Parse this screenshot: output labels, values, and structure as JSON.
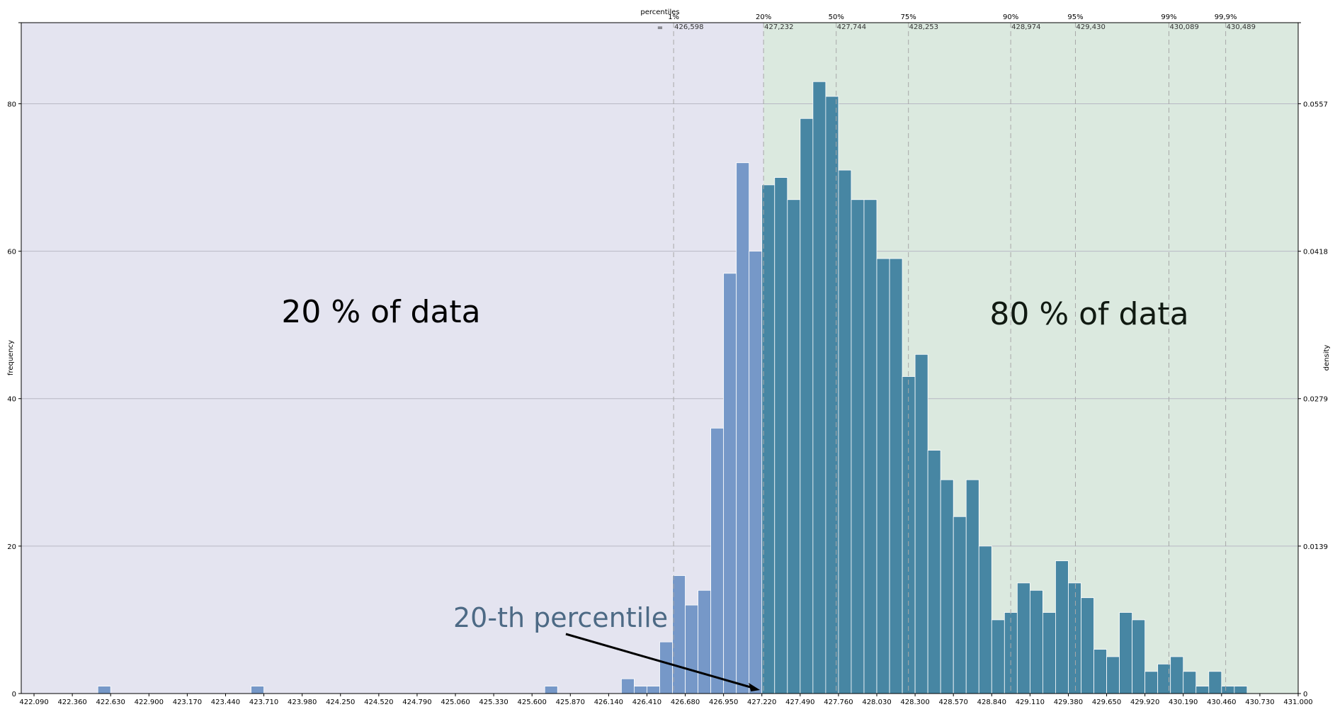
{
  "colors": {
    "left_region": "#e4e4f0",
    "right_region": "#dbe9df",
    "left_bars": "#7698c8",
    "right_bars": "#4786a3",
    "grid": "#b8b8c4",
    "percentile_line": "#a8a8a8",
    "annotation_text": "#4d6a85"
  },
  "chart_data": {
    "type": "bar",
    "x_range": [
      422.0,
      431.0
    ],
    "bin_width": 0.09,
    "bins_start": [
      422.54,
      423.62,
      425.69,
      426.23,
      426.32,
      426.41,
      426.5,
      426.59,
      426.68,
      426.77,
      426.86,
      426.95,
      427.04,
      427.13,
      427.22,
      427.31,
      427.4,
      427.49,
      427.58,
      427.67,
      427.76,
      427.85,
      427.94,
      428.03,
      428.12,
      428.21,
      428.3,
      428.39,
      428.48,
      428.57,
      428.66,
      428.75,
      428.84,
      428.93,
      429.02,
      429.11,
      429.2,
      429.29,
      429.38,
      429.47,
      429.56,
      429.65,
      429.74,
      429.83,
      429.92,
      430.01,
      430.1,
      430.19,
      430.28,
      430.37,
      430.46,
      430.55
    ],
    "values": [
      1,
      1,
      1,
      2,
      1,
      1,
      7,
      16,
      12,
      14,
      36,
      57,
      72,
      60,
      69,
      70,
      67,
      78,
      83,
      81,
      71,
      67,
      67,
      59,
      59,
      43,
      46,
      33,
      29,
      24,
      29,
      20,
      10,
      11,
      15,
      14,
      11,
      18,
      15,
      13,
      6,
      5,
      11,
      10,
      3,
      4,
      5,
      3,
      1,
      3,
      1,
      1
    ],
    "split_value": 427.232,
    "x_ticks": [
      "422.090",
      "422.360",
      "422.630",
      "422.900",
      "423.170",
      "423.440",
      "423.710",
      "423.980",
      "424.250",
      "424.520",
      "424.790",
      "425.060",
      "425.330",
      "425.600",
      "425.870",
      "426.140",
      "426.410",
      "426.680",
      "426.950",
      "427.220",
      "427.490",
      "427.760",
      "428.030",
      "428.300",
      "428.570",
      "428.840",
      "429.110",
      "429.380",
      "429.650",
      "429.920",
      "430.190",
      "430.460",
      "430.730",
      "431.000"
    ],
    "y_range": [
      0,
      91
    ],
    "y_ticks": [
      0,
      20,
      40,
      60,
      80
    ],
    "ylabel": "frequency",
    "y2label": "density",
    "y2_ticks": [
      "0",
      "0.0139",
      "0.0279",
      "0.0418",
      "0.0557"
    ],
    "grid": "horizontal",
    "percentiles_title": "percentiles",
    "percentiles_symbol": "=",
    "percentiles": [
      {
        "label": "1%",
        "value": "426,598"
      },
      {
        "label": "20%",
        "value": "427,232"
      },
      {
        "label": "50%",
        "value": "427,744"
      },
      {
        "label": "75%",
        "value": "428,253"
      },
      {
        "label": "90%",
        "value": "428,974"
      },
      {
        "label": "95%",
        "value": "429,430"
      },
      {
        "label": "99%",
        "value": "430,089"
      },
      {
        "label": "99,9%",
        "value": "430,489"
      }
    ],
    "left_region_text": "20 % of data",
    "right_region_text": "80 % of data",
    "annotation_text": "20-th percentile"
  }
}
